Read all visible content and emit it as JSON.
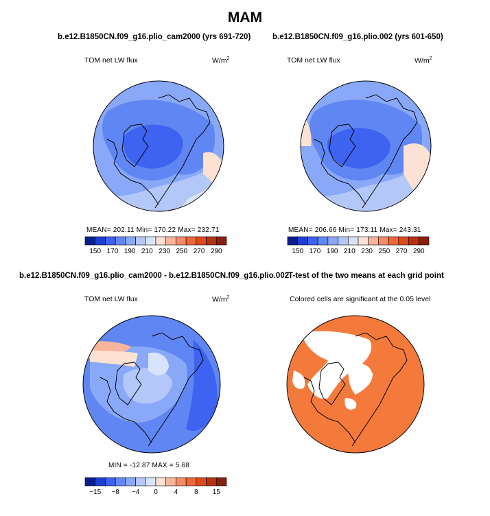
{
  "figure": {
    "title": "MAM",
    "panels": [
      {
        "id": "p1",
        "run_title": "b.e12.B1850CN.f09_g16.plio_cam2000 (yrs 691-720)",
        "variable": "TOM net LW flux",
        "units_base": "W/m",
        "units_exp": "2",
        "stats": "MEAN= 202.11   Min= 170.22   Max= 232.71"
      },
      {
        "id": "p2",
        "run_title": "b.e12.B1850CN.f09_g16.plio.002 (yrs 601-650)",
        "variable": "TOM net LW flux",
        "units_base": "W/m",
        "units_exp": "2",
        "stats": "MEAN= 206.66   Min= 173.11   Max= 243.31"
      },
      {
        "id": "p3",
        "run_title": "b.e12.B1850CN.f09_g16.plio_cam2000 - b.e12.B1850CN.f09_g16.plio.002",
        "variable": "TOM net LW flux",
        "units_base": "W/m",
        "units_exp": "2",
        "stats": "MIN = -12.87  MAX =    5.68"
      },
      {
        "id": "p4",
        "run_title": "T-test of the two means at each grid point",
        "note": "Colored cells are significant at the 0.05 level"
      }
    ]
  },
  "chart_data": [
    {
      "type": "heatmap",
      "projection": "north-polar-stereographic",
      "title": "b.e12.B1850CN.f09_g16.plio_cam2000 (yrs 691-720)",
      "variable": "TOM net LW flux",
      "units": "W/m2",
      "mean": 202.11,
      "min": 170.22,
      "max": 232.71,
      "colorbar_ticks": [
        150,
        170,
        190,
        210,
        230,
        250,
        270,
        290
      ],
      "colorbar_ticks_text": [
        "150",
        "170",
        "190",
        "210",
        "230",
        "250",
        "270",
        "290"
      ],
      "colorbar_colors": [
        "#0a1f8f",
        "#1f3fd4",
        "#3d63f0",
        "#6188f5",
        "#89a9f8",
        "#b3c8f9",
        "#d8e4fb",
        "#fde2d3",
        "#f9b59b",
        "#f58b67",
        "#ef6639",
        "#dd4a1c",
        "#b53212",
        "#8a1f0b"
      ]
    },
    {
      "type": "heatmap",
      "projection": "north-polar-stereographic",
      "title": "b.e12.B1850CN.f09_g16.plio.002 (yrs 601-650)",
      "variable": "TOM net LW flux",
      "units": "W/m2",
      "mean": 206.66,
      "min": 173.11,
      "max": 243.31,
      "colorbar_ticks": [
        150,
        170,
        190,
        210,
        230,
        250,
        270,
        290
      ],
      "colorbar_ticks_text": [
        "150",
        "170",
        "190",
        "210",
        "230",
        "250",
        "270",
        "290"
      ],
      "colorbar_colors": [
        "#0a1f8f",
        "#1f3fd4",
        "#3d63f0",
        "#6188f5",
        "#89a9f8",
        "#b3c8f9",
        "#d8e4fb",
        "#fde2d3",
        "#f9b59b",
        "#f58b67",
        "#ef6639",
        "#dd4a1c",
        "#b53212",
        "#8a1f0b"
      ]
    },
    {
      "type": "heatmap",
      "projection": "north-polar-stereographic",
      "title": "b.e12.B1850CN.f09_g16.plio_cam2000 - b.e12.B1850CN.f09_g16.plio.002",
      "variable": "TOM net LW flux",
      "units": "W/m2",
      "min": -12.87,
      "max": 5.68,
      "colorbar_ticks": [
        -15,
        -8,
        -4,
        0,
        4,
        8,
        15
      ],
      "colorbar_ticks_text": [
        "−15",
        "−8",
        "−4",
        "0",
        "4",
        "8",
        "15"
      ],
      "colorbar_colors": [
        "#0a1f8f",
        "#1f3fd4",
        "#3d63f0",
        "#6188f5",
        "#89a9f8",
        "#b3c8f9",
        "#d8e4fb",
        "#fde2d3",
        "#f9b59b",
        "#f58b67",
        "#ef6639",
        "#dd4a1c",
        "#b53212",
        "#8a1f0b"
      ]
    },
    {
      "type": "heatmap",
      "projection": "north-polar-stereographic",
      "title": "T-test of the two means at each grid point",
      "note": "Colored cells are significant at the 0.05 level",
      "significant_color": "#f47a3c",
      "nonsignificant_color": "#ffffff"
    }
  ],
  "style": {
    "land_outline": "#000000",
    "base_fill_p1": "#89a9f8",
    "base_fill_p2": "#89a9f8",
    "base_fill_p3": "#5f86f2",
    "base_fill_p4": "#f47a3c"
  }
}
